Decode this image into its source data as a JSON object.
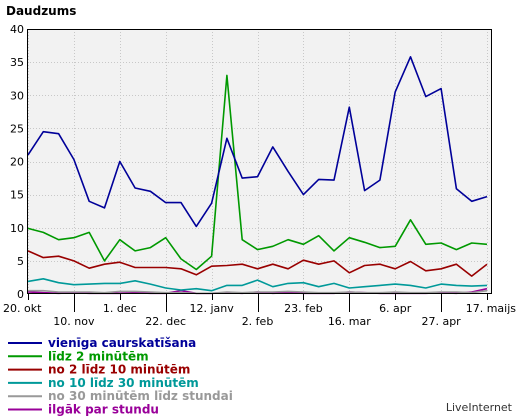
{
  "chart_data": {
    "type": "line",
    "title": "Daudzums",
    "ylim": [
      0,
      40
    ],
    "yticks": [
      0,
      5,
      10,
      15,
      20,
      25,
      30,
      35,
      40
    ],
    "grid": true,
    "legend_position": "bottom-left",
    "x_tick_labels": [
      {
        "index": 0,
        "label": "20. okt",
        "row": 1
      },
      {
        "index": 3,
        "label": "10. nov",
        "row": 2
      },
      {
        "index": 6,
        "label": "1. dec",
        "row": 1
      },
      {
        "index": 9,
        "label": "22. dec",
        "row": 2
      },
      {
        "index": 12,
        "label": "12. janv",
        "row": 1
      },
      {
        "index": 15,
        "label": "2. feb",
        "row": 2
      },
      {
        "index": 18,
        "label": "23. feb",
        "row": 1
      },
      {
        "index": 21,
        "label": "16. mar",
        "row": 2
      },
      {
        "index": 24,
        "label": "6. apr",
        "row": 1
      },
      {
        "index": 27,
        "label": "27. apr",
        "row": 2
      },
      {
        "index": 30,
        "label": "17. maijs",
        "row": 1
      }
    ],
    "series": [
      {
        "name": "vienīga caurskatīšana",
        "color": "#000099",
        "values": [
          21,
          24.5,
          24.2,
          20.3,
          14,
          13,
          20,
          16,
          15.5,
          13.8,
          13.8,
          10.2,
          13.7,
          23.5,
          17.5,
          17.7,
          22.2,
          18.5,
          15,
          17.3,
          17.2,
          28.2,
          15.6,
          17.2,
          30.5,
          35.8,
          29.8,
          31,
          15.9,
          14,
          14.7
        ]
      },
      {
        "name": "līdz 2 minūtēm",
        "color": "#009900",
        "values": [
          9.9,
          9.3,
          8.2,
          8.5,
          9.3,
          5,
          8.2,
          6.5,
          7,
          8.5,
          5.3,
          3.7,
          5.7,
          33,
          8.2,
          6.7,
          7.2,
          8.2,
          7.5,
          8.8,
          6.5,
          8.5,
          7.8,
          7,
          7.2,
          11.2,
          7.5,
          7.7,
          6.7,
          7.7,
          7.5
        ]
      },
      {
        "name": "no 2 līdz 10 minūtēm",
        "color": "#990000",
        "values": [
          6.5,
          5.5,
          5.7,
          5,
          3.9,
          4.5,
          4.8,
          4,
          4,
          4,
          3.8,
          2.9,
          4.2,
          4.3,
          4.5,
          3.8,
          4.5,
          3.8,
          5.1,
          4.5,
          5,
          3.2,
          4.3,
          4.5,
          3.8,
          4.9,
          3.5,
          3.8,
          4.5,
          2.7,
          4.5
        ]
      },
      {
        "name": "no 10 līdz 30 minūtēm",
        "color": "#009999",
        "values": [
          1.9,
          2.3,
          1.7,
          1.4,
          1.5,
          1.6,
          1.6,
          2,
          1.5,
          0.9,
          0.6,
          0.8,
          0.5,
          1.3,
          1.3,
          2.1,
          1.1,
          1.6,
          1.7,
          1.1,
          1.6,
          0.9,
          1.1,
          1.3,
          1.5,
          1.3,
          0.9,
          1.5,
          1.3,
          1.2,
          1.3
        ]
      },
      {
        "name": "no 30 minūtēm līdz stundai",
        "color": "#999999",
        "values": [
          0.5,
          0.5,
          0.3,
          0.3,
          0.3,
          0.2,
          0.4,
          0.4,
          0.3,
          0.2,
          0.2,
          0.1,
          0.1,
          0.3,
          0.2,
          0.3,
          0.3,
          0.4,
          0.3,
          0.2,
          0.2,
          0.3,
          0.2,
          0.2,
          0.3,
          0.2,
          0.2,
          0.3,
          0.3,
          0.2,
          0.5
        ]
      },
      {
        "name": "ilgāk par stundu",
        "color": "#990099",
        "values": [
          0.3,
          0.2,
          0.1,
          0.2,
          0.1,
          0.1,
          0.1,
          0.2,
          0.1,
          0.1,
          0.5,
          0.1,
          0.1,
          0.2,
          0.1,
          0.3,
          0.1,
          0.2,
          0.1,
          0.1,
          0.1,
          0.3,
          0.2,
          0.1,
          0.1,
          0.1,
          0.1,
          0.2,
          0.1,
          0.3,
          0.8
        ]
      }
    ]
  },
  "branding": {
    "text": "LiveInternet"
  }
}
